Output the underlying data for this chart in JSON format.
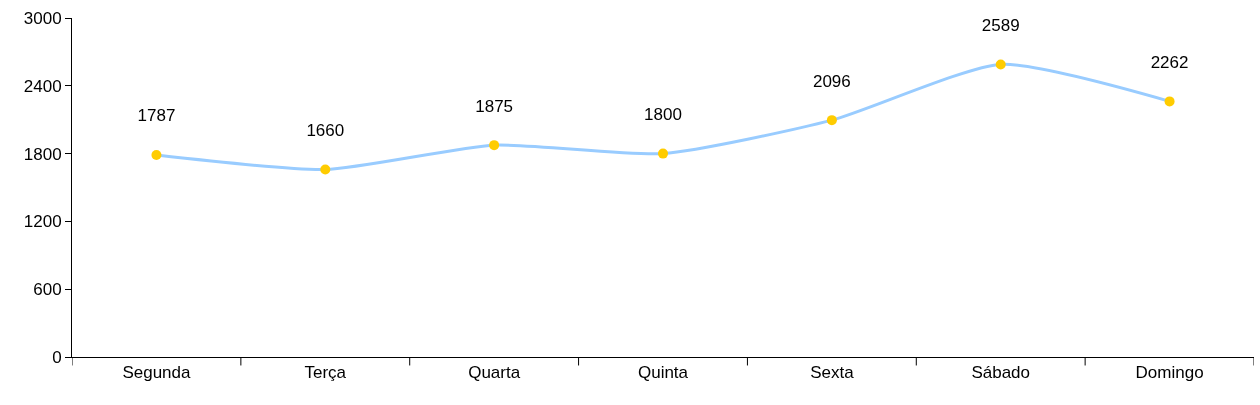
{
  "chart_data": {
    "type": "line",
    "categories": [
      "Segunda",
      "Terça",
      "Quarta",
      "Quinta",
      "Sexta",
      "Sábado",
      "Domingo"
    ],
    "series": [
      {
        "color": "#99ccff",
        "colors": [
          "#ffcc00",
          "#ffcc00",
          "#ffcc00",
          "#ffcc00",
          "#ffcc00",
          "#ffcc00",
          "#ffcc00"
        ],
        "values": [
          1787,
          1660,
          1875,
          1800,
          2096,
          2589,
          2262
        ]
      }
    ],
    "ylim": [
      0,
      3000
    ],
    "yticks": [
      0,
      600,
      1200,
      1800,
      2400,
      3000
    ],
    "data_labels": true,
    "marker": "circle",
    "line_style": "solid"
  }
}
